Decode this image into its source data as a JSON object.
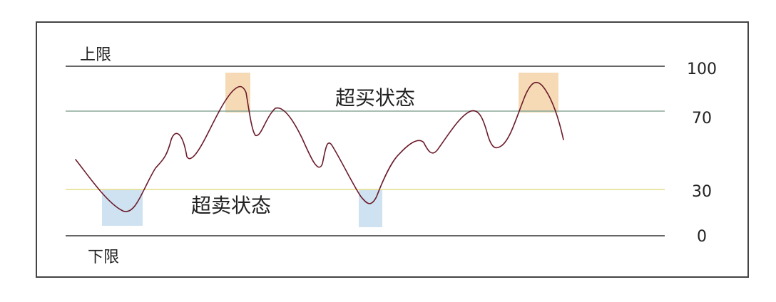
{
  "labels": {
    "upper_limit": "上限",
    "lower_limit": "下限",
    "overbought": "超买状态",
    "oversold": "超卖状态"
  },
  "levels": {
    "l100": "100",
    "l70": "70",
    "l30": "30",
    "l0": "0"
  },
  "colors": {
    "curve": "#6b1a2a",
    "line_100": "#333333",
    "line_70": "#8aa89a",
    "line_30": "#e6de88",
    "line_0": "#333333",
    "overbought_box": "#f3d3a8",
    "oversold_box": "#c9dff0"
  }
}
